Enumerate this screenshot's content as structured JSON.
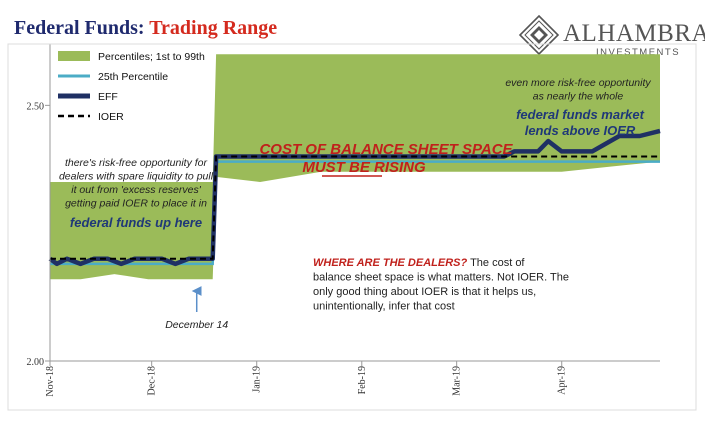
{
  "header": {
    "title_prefix": "Federal Funds: ",
    "title_highlight": "Trading Range",
    "brand_name": "ALHAMBRA",
    "brand_sub": "INVESTMENTS"
  },
  "colors": {
    "title_navy": "#1f2a6e",
    "title_red": "#d42a1e",
    "band_green": "#9bbb59",
    "p25_cyan": "#4bacc6",
    "eff_navy": "#1f3064",
    "ioer_black": "#000000",
    "annot_red": "#c0211c",
    "annot_navy": "#1f3878",
    "annot_text": "#222222",
    "axis_gray": "#9a9a9a",
    "gridline_gray": "#c8c8c8",
    "brand_gray": "#555555",
    "arrow_blue": "#5b8fc9"
  },
  "chart_data": {
    "type": "area",
    "title": "Federal Funds: Trading Range",
    "xlabel": "",
    "ylabel": "",
    "ylim": [
      2.0,
      2.62
    ],
    "yticks": [
      2.0,
      2.5
    ],
    "ytick_labels": [
      "2.00",
      "2.50"
    ],
    "xlim": [
      "2018-11-01",
      "2019-04-30"
    ],
    "xticks": [
      "2018-11-01",
      "2018-12-01",
      "2019-01-01",
      "2019-02-01",
      "2019-03-01",
      "2019-04-01"
    ],
    "xtick_labels": [
      "Nov-18",
      "Dec-18",
      "Jan-19",
      "Feb-19",
      "Mar-19",
      "Apr-19"
    ],
    "grid": false,
    "legend_position": "top-left",
    "legend": [
      {
        "label": "Percentiles; 1st to 99th",
        "kind": "band"
      },
      {
        "label": "25th Percentile",
        "kind": "thin-line"
      },
      {
        "label": "EFF",
        "kind": "thick-line"
      },
      {
        "label": "IOER",
        "kind": "dashed-line"
      }
    ],
    "series": [
      {
        "name": "Percentiles; 1st to 99th",
        "x": [
          "2018-11-01",
          "2018-11-10",
          "2018-11-20",
          "2018-11-30",
          "2018-12-10",
          "2018-12-19",
          "2018-12-20",
          "2019-01-02",
          "2019-01-20",
          "2019-02-01",
          "2019-02-15",
          "2019-03-01",
          "2019-03-15",
          "2019-04-01",
          "2019-04-15",
          "2019-04-30"
        ],
        "high": [
          2.35,
          2.35,
          2.35,
          2.35,
          2.35,
          2.35,
          2.6,
          2.6,
          2.6,
          2.6,
          2.6,
          2.6,
          2.6,
          2.6,
          2.6,
          2.6
        ],
        "low": [
          2.16,
          2.16,
          2.17,
          2.16,
          2.16,
          2.16,
          2.36,
          2.35,
          2.37,
          2.37,
          2.37,
          2.37,
          2.37,
          2.37,
          2.38,
          2.39
        ]
      },
      {
        "name": "25th Percentile",
        "x": [
          "2018-11-01",
          "2018-12-19",
          "2018-12-20",
          "2019-04-30"
        ],
        "values": [
          2.19,
          2.19,
          2.39,
          2.39
        ]
      },
      {
        "name": "EFF",
        "x": [
          "2018-11-01",
          "2018-11-03",
          "2018-11-06",
          "2018-11-10",
          "2018-11-14",
          "2018-11-18",
          "2018-11-22",
          "2018-11-26",
          "2018-11-30",
          "2018-12-04",
          "2018-12-08",
          "2018-12-12",
          "2018-12-16",
          "2018-12-19",
          "2018-12-20",
          "2019-01-02",
          "2019-01-15",
          "2019-02-01",
          "2019-02-15",
          "2019-03-01",
          "2019-03-15",
          "2019-03-18",
          "2019-03-25",
          "2019-03-28",
          "2019-04-01",
          "2019-04-10",
          "2019-04-18",
          "2019-04-24",
          "2019-04-30"
        ],
        "values": [
          2.2,
          2.19,
          2.2,
          2.19,
          2.2,
          2.2,
          2.19,
          2.2,
          2.2,
          2.2,
          2.19,
          2.2,
          2.2,
          2.2,
          2.4,
          2.4,
          2.4,
          2.4,
          2.4,
          2.4,
          2.4,
          2.41,
          2.41,
          2.43,
          2.41,
          2.41,
          2.44,
          2.44,
          2.45
        ]
      },
      {
        "name": "IOER",
        "x": [
          "2018-11-01",
          "2018-12-19",
          "2018-12-20",
          "2019-04-30"
        ],
        "values": [
          2.2,
          2.2,
          2.4,
          2.4
        ]
      }
    ],
    "annotations": [
      {
        "id": "balance_sheet",
        "lines": [
          "COST OF BALANCE SHEET SPACE",
          "MUST BE RISING"
        ],
        "underline_words": "MUST BE"
      },
      {
        "id": "risk_free_1",
        "lines": [
          "there's risk-free opportunity for",
          "dealers with spare liquidity to pull",
          "it out from 'excess reserves'",
          "getting paid IOER to place it in"
        ],
        "emphasis": "federal funds up here"
      },
      {
        "id": "risk_free_2",
        "lines": [
          "even more risk-free opportunity",
          "as nearly the whole"
        ],
        "emphasis_lines": [
          "federal funds market",
          "lends above IOER"
        ]
      },
      {
        "id": "dealers",
        "headline": "WHERE ARE THE DEALERS?",
        "lines": [
          " The cost of",
          "balance sheet space is what matters. Not IOER. The",
          "only good thing about IOER is that it helps us,",
          "unintentionally, infer that cost"
        ]
      },
      {
        "id": "dec14",
        "text": "December 14",
        "date": "2018-12-14"
      }
    ]
  }
}
